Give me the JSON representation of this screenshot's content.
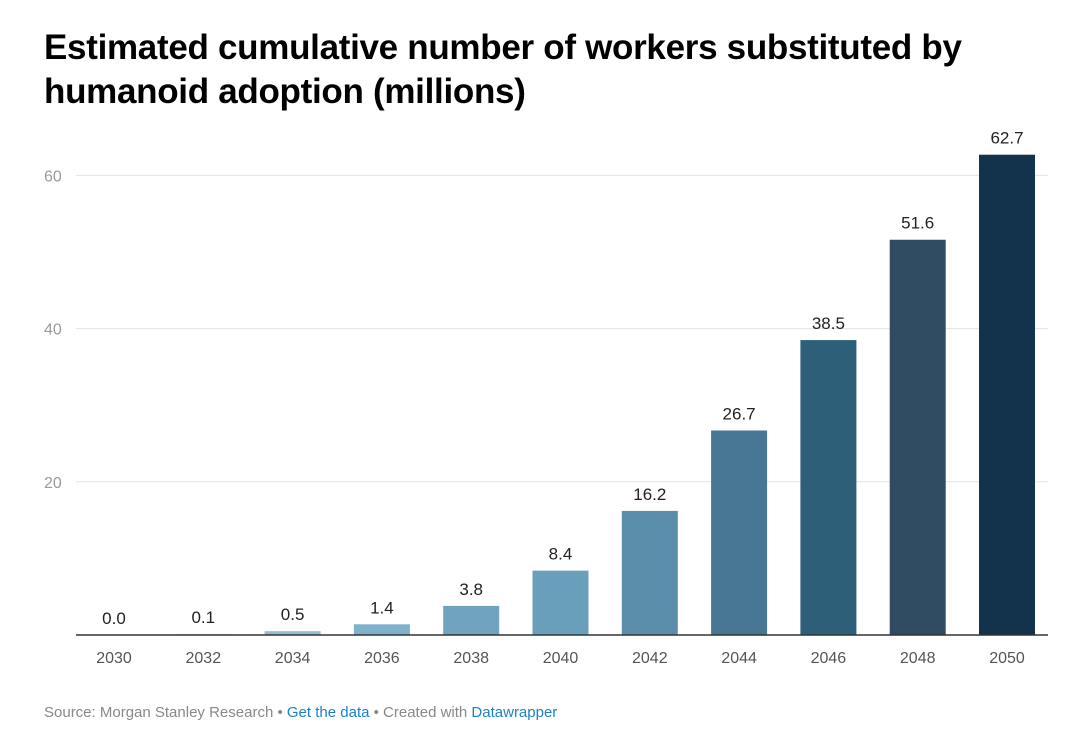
{
  "chart_data": {
    "type": "bar",
    "title": "Estimated cumulative number of workers substituted by humanoid adoption (millions)",
    "categories": [
      "2030",
      "2032",
      "2034",
      "2036",
      "2038",
      "2040",
      "2042",
      "2044",
      "2046",
      "2048",
      "2050"
    ],
    "values": [
      0.0,
      0.1,
      0.5,
      1.4,
      3.8,
      8.4,
      16.2,
      26.7,
      38.5,
      51.6,
      62.7
    ],
    "value_labels": [
      "0.0",
      "0.1",
      "0.5",
      "1.4",
      "3.8",
      "8.4",
      "16.2",
      "26.7",
      "38.5",
      "51.6",
      "62.7"
    ],
    "colors": [
      "#a7c9dc",
      "#a2c5d9",
      "#92bdd3",
      "#80b1ca",
      "#6fa3be",
      "#6a9fbb",
      "#5b8eaa",
      "#487793",
      "#2d5f79",
      "#2f4b62",
      "#13324b"
    ],
    "y_ticks": [
      20,
      40,
      60
    ],
    "y_tick_labels": [
      "20",
      "40",
      "60"
    ],
    "ylim": [
      0,
      62.7
    ],
    "grid": true,
    "xlabel": "",
    "ylabel": ""
  },
  "footer": {
    "source": "Source: Morgan Stanley Research",
    "sep1": " • ",
    "get_data": "Get the data",
    "sep2": " • ",
    "created": "Created with ",
    "datawrapper": "Datawrapper"
  }
}
